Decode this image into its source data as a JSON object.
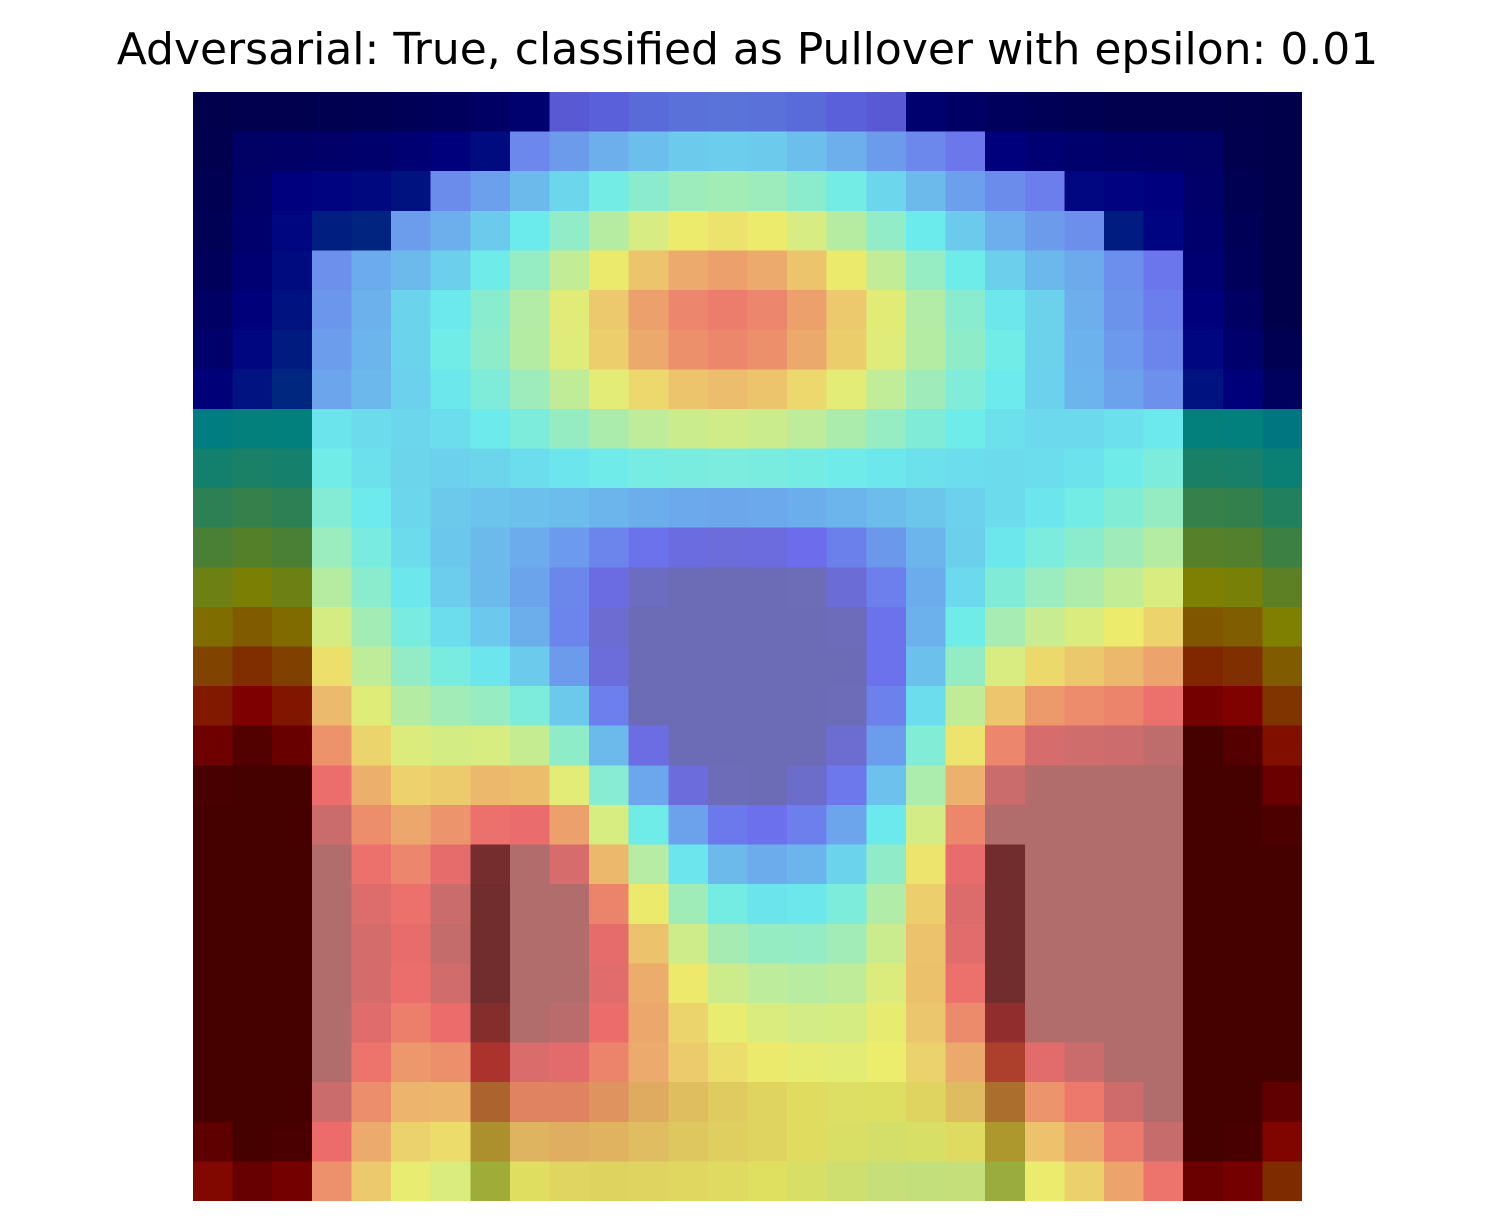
{
  "chart_data": {
    "type": "heatmap",
    "title": "Adversarial: True, classified as Pullover with epsilon: 0.01",
    "adversarial": true,
    "predicted_class": "Pullover",
    "epsilon": 0.01,
    "colormap": "jet overlaid on grayscale image",
    "axes_visible": false,
    "grid": false,
    "legend": "none",
    "rows": 28,
    "cols": 28,
    "value_range": [
      0,
      1
    ]
  }
}
